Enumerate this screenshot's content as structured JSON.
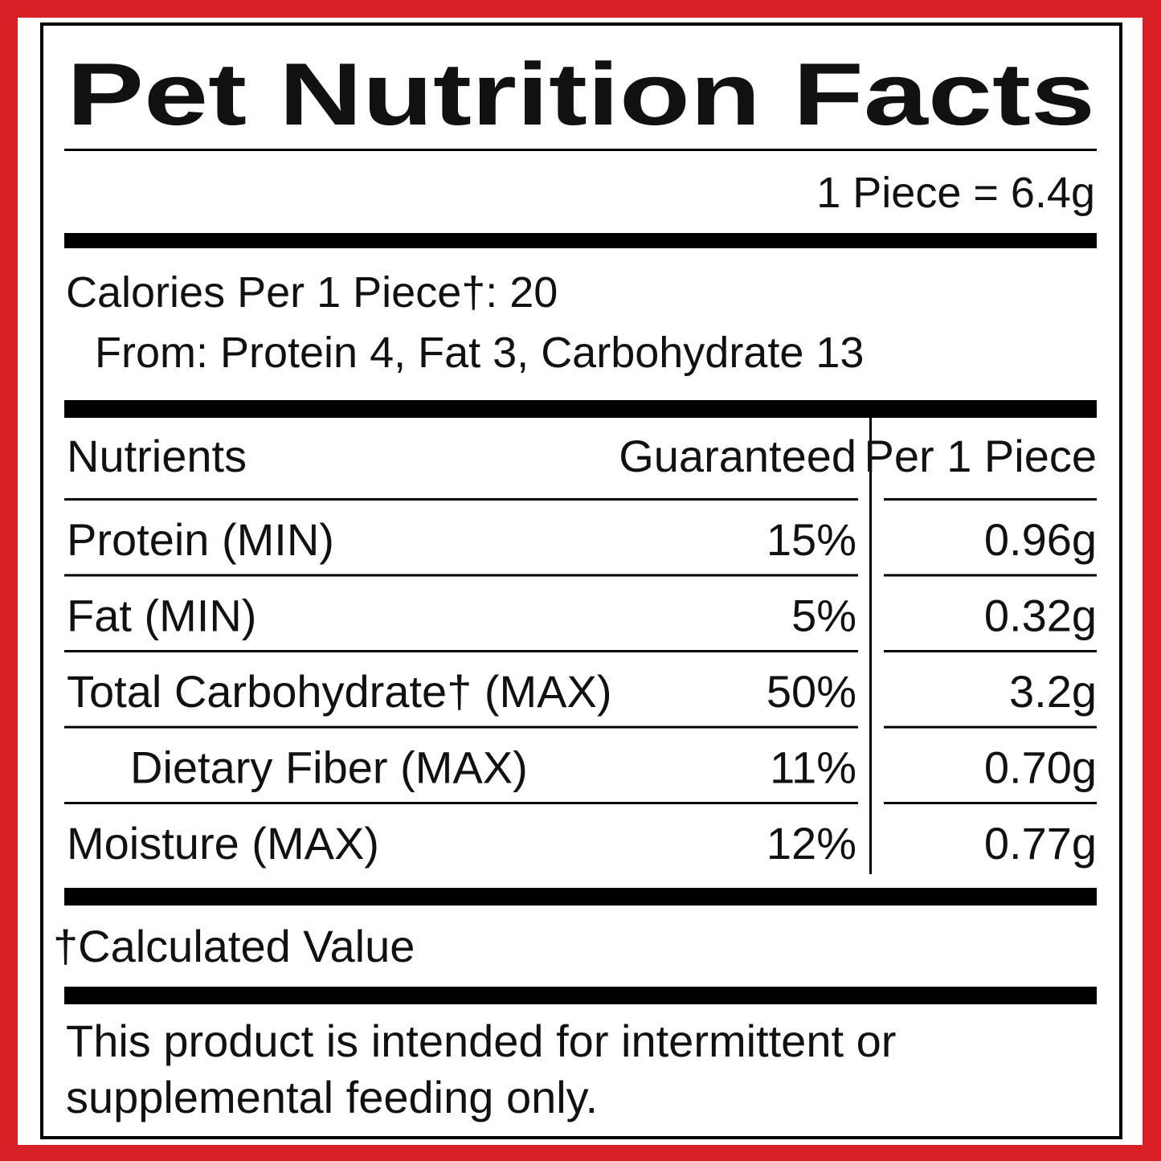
{
  "header": {
    "title": "Pet Nutrition Facts",
    "serving": "1 Piece = 6.4g"
  },
  "calories": {
    "line": "Calories Per 1 Piece†: 20",
    "from": "From: Protein 4, Fat 3, Carbohydrate 13"
  },
  "table": {
    "columns": [
      "Nutrients",
      "Guaranteed",
      "Per 1 Piece"
    ],
    "rows": [
      [
        "Protein (MIN)",
        "15%",
        "0.96g"
      ],
      [
        "Fat (MIN)",
        "5%",
        "0.32g"
      ],
      [
        "Total Carbohydrate† (MAX)",
        "50%",
        "3.2g"
      ],
      [
        "Dietary Fiber (MAX)",
        "11%",
        "0.70g"
      ],
      [
        "Moisture (MAX)",
        "12%",
        "0.77g"
      ]
    ]
  },
  "footnote": "†Calculated Value",
  "disclaimer": [
    "This product is intended for intermittent or",
    "supplemental feeding only."
  ]
}
